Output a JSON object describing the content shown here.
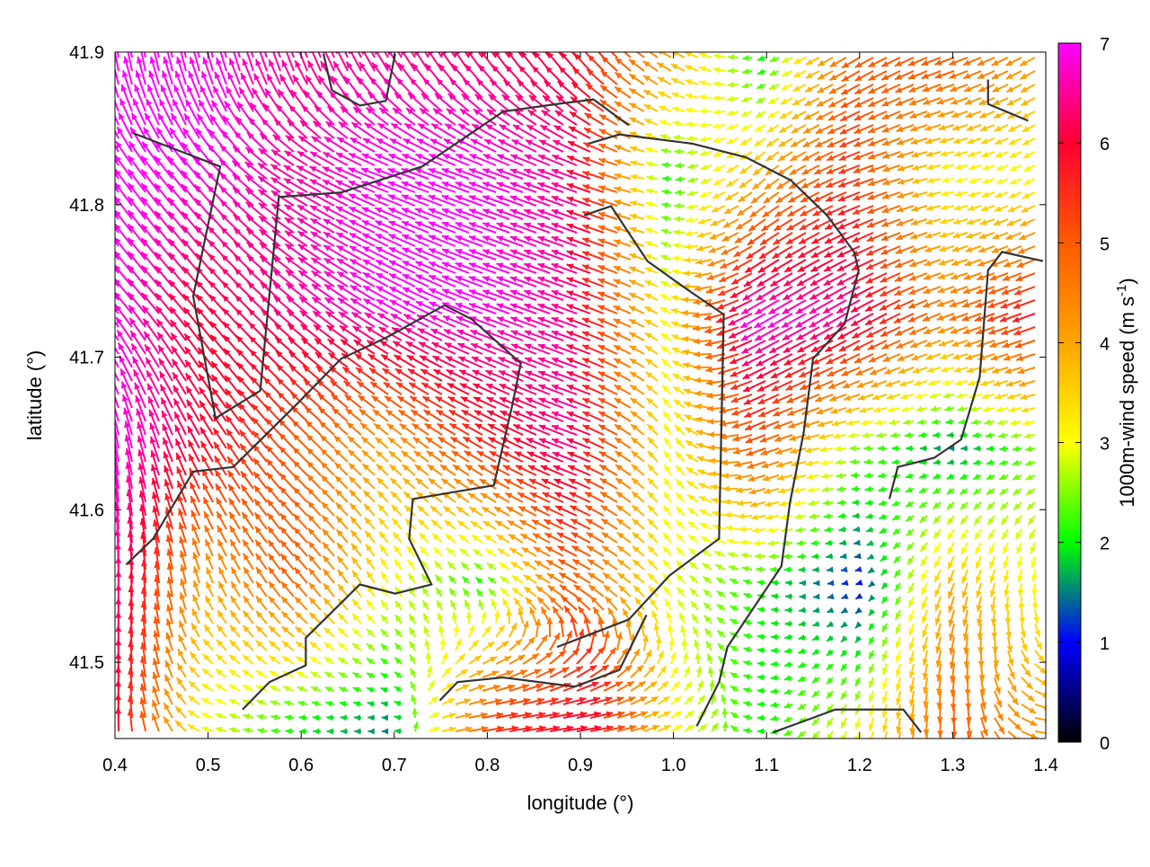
{
  "chart_data": {
    "type": "vector-field",
    "title": "",
    "xlabel": "longitude (°)",
    "ylabel": "latitude (°)",
    "xlim": [
      0.4,
      1.4
    ],
    "ylim": [
      41.45,
      41.9
    ],
    "xticks": [
      "0.4",
      "0.5",
      "0.6",
      "0.7",
      "0.8",
      "0.9",
      "1.0",
      "1.1",
      "1.2",
      "1.3",
      "1.4"
    ],
    "yticks": [
      "41.5",
      "41.6",
      "41.7",
      "41.8",
      "41.9"
    ],
    "grid": false,
    "colorbar": {
      "label": "1000m-wind speed (m s",
      "label_sup": "-1",
      "label_end": ")",
      "range": [
        0,
        7
      ],
      "ticks": [
        "0",
        "1",
        "2",
        "3",
        "4",
        "5",
        "6",
        "7"
      ],
      "colors": [
        "#000000",
        "#0000ff",
        "#00ff00",
        "#ffff00",
        "#ffa500",
        "#ff5a00",
        "#ff0030",
        "#ff00ff"
      ]
    },
    "vector_grid": {
      "lon": [
        0.4,
        0.5,
        0.6,
        0.7,
        0.8,
        0.9,
        1.0,
        1.1,
        1.2,
        1.3,
        1.4
      ],
      "lat": [
        41.89,
        41.82,
        41.73,
        41.64,
        41.55,
        41.46
      ],
      "speed": [
        [
          7,
          7,
          6.5,
          6.5,
          6.3,
          6,
          4,
          2,
          5,
          5,
          4
        ],
        [
          7,
          7,
          6.5,
          7,
          7,
          6.5,
          2,
          4,
          5.5,
          3,
          3
        ],
        [
          7,
          6,
          6.5,
          7,
          7,
          6.5,
          3,
          7,
          6.5,
          4.5,
          6
        ],
        [
          7,
          6,
          5,
          4,
          5.5,
          6.5,
          3,
          5,
          2.5,
          1.5,
          2.5
        ],
        [
          6.5,
          4,
          5,
          3,
          2,
          5,
          3,
          2,
          1,
          4,
          3
        ],
        [
          6,
          3,
          2,
          1.5,
          5.5,
          6,
          3,
          2,
          3,
          5,
          4
        ]
      ],
      "heading_deg": [
        [
          350,
          345,
          340,
          330,
          325,
          320,
          300,
          250,
          240,
          250,
          240
        ],
        [
          325,
          320,
          300,
          290,
          290,
          290,
          270,
          230,
          250,
          260,
          240
        ],
        [
          320,
          320,
          310,
          300,
          290,
          290,
          300,
          240,
          240,
          250,
          250
        ],
        [
          350,
          330,
          315,
          310,
          300,
          290,
          330,
          250,
          270,
          270,
          260
        ],
        [
          0,
          340,
          320,
          330,
          310,
          300,
          320,
          280,
          250,
          200,
          180
        ],
        [
          0,
          290,
          270,
          270,
          80,
          80,
          60,
          270,
          200,
          180,
          90
        ]
      ]
    },
    "coastlines": [
      [
        [
          0.419,
          41.847
        ],
        [
          0.513,
          41.825
        ],
        [
          0.484,
          41.74
        ],
        [
          0.508,
          41.66
        ],
        [
          0.556,
          41.678
        ],
        [
          0.576,
          41.805
        ],
        [
          0.643,
          41.808
        ],
        [
          0.73,
          41.825
        ],
        [
          0.817,
          41.861
        ],
        [
          0.875,
          41.866
        ],
        [
          0.914,
          41.869
        ],
        [
          0.952,
          41.852
        ]
      ],
      [
        [
          0.412,
          41.564
        ],
        [
          0.441,
          41.581
        ],
        [
          0.484,
          41.625
        ],
        [
          0.527,
          41.628
        ],
        [
          0.595,
          41.669
        ],
        [
          0.643,
          41.699
        ],
        [
          0.692,
          41.713
        ],
        [
          0.754,
          41.734
        ],
        [
          0.783,
          41.725
        ],
        [
          0.836,
          41.696
        ],
        [
          0.827,
          41.669
        ],
        [
          0.807,
          41.616
        ],
        [
          0.72,
          41.607
        ],
        [
          0.716,
          41.581
        ],
        [
          0.74,
          41.551
        ],
        [
          0.701,
          41.545
        ],
        [
          0.663,
          41.551
        ],
        [
          0.605,
          41.516
        ],
        [
          0.605,
          41.498
        ],
        [
          0.566,
          41.487
        ],
        [
          0.537,
          41.469
        ]
      ],
      [
        [
          1.025,
          41.458
        ],
        [
          1.049,
          41.487
        ],
        [
          1.058,
          41.51
        ],
        [
          1.116,
          41.563
        ],
        [
          1.125,
          41.604
        ],
        [
          1.14,
          41.651
        ],
        [
          1.15,
          41.699
        ],
        [
          1.184,
          41.722
        ],
        [
          1.199,
          41.757
        ],
        [
          1.194,
          41.769
        ],
        [
          1.165,
          41.793
        ],
        [
          1.126,
          41.816
        ],
        [
          1.078,
          41.831
        ],
        [
          1.02,
          41.84
        ],
        [
          0.942,
          41.846
        ],
        [
          0.909,
          41.84
        ]
      ],
      [
        [
          0.875,
          41.51
        ],
        [
          0.952,
          41.528
        ],
        [
          0.996,
          41.557
        ],
        [
          1.049,
          41.581
        ],
        [
          1.054,
          41.728
        ],
        [
          1.011,
          41.746
        ],
        [
          0.972,
          41.763
        ],
        [
          0.933,
          41.799
        ],
        [
          0.904,
          41.793
        ]
      ],
      [
        [
          1.107,
          41.454
        ],
        [
          1.174,
          41.469
        ],
        [
          1.247,
          41.469
        ],
        [
          1.266,
          41.454
        ]
      ],
      [
        [
          1.232,
          41.607
        ],
        [
          1.241,
          41.628
        ],
        [
          1.28,
          41.634
        ],
        [
          1.309,
          41.646
        ],
        [
          1.329,
          41.687
        ],
        [
          1.338,
          41.757
        ],
        [
          1.353,
          41.769
        ],
        [
          1.397,
          41.763
        ]
      ],
      [
        [
          1.338,
          41.882
        ],
        [
          1.338,
          41.866
        ],
        [
          1.381,
          41.855
        ]
      ],
      [
        [
          0.624,
          41.899
        ],
        [
          0.633,
          41.875
        ],
        [
          0.663,
          41.865
        ],
        [
          0.691,
          41.868
        ],
        [
          0.701,
          41.899
        ]
      ],
      [
        [
          0.749,
          41.475
        ],
        [
          0.768,
          41.487
        ],
        [
          0.817,
          41.49
        ],
        [
          0.894,
          41.484
        ],
        [
          0.942,
          41.495
        ],
        [
          0.971,
          41.531
        ]
      ]
    ]
  }
}
